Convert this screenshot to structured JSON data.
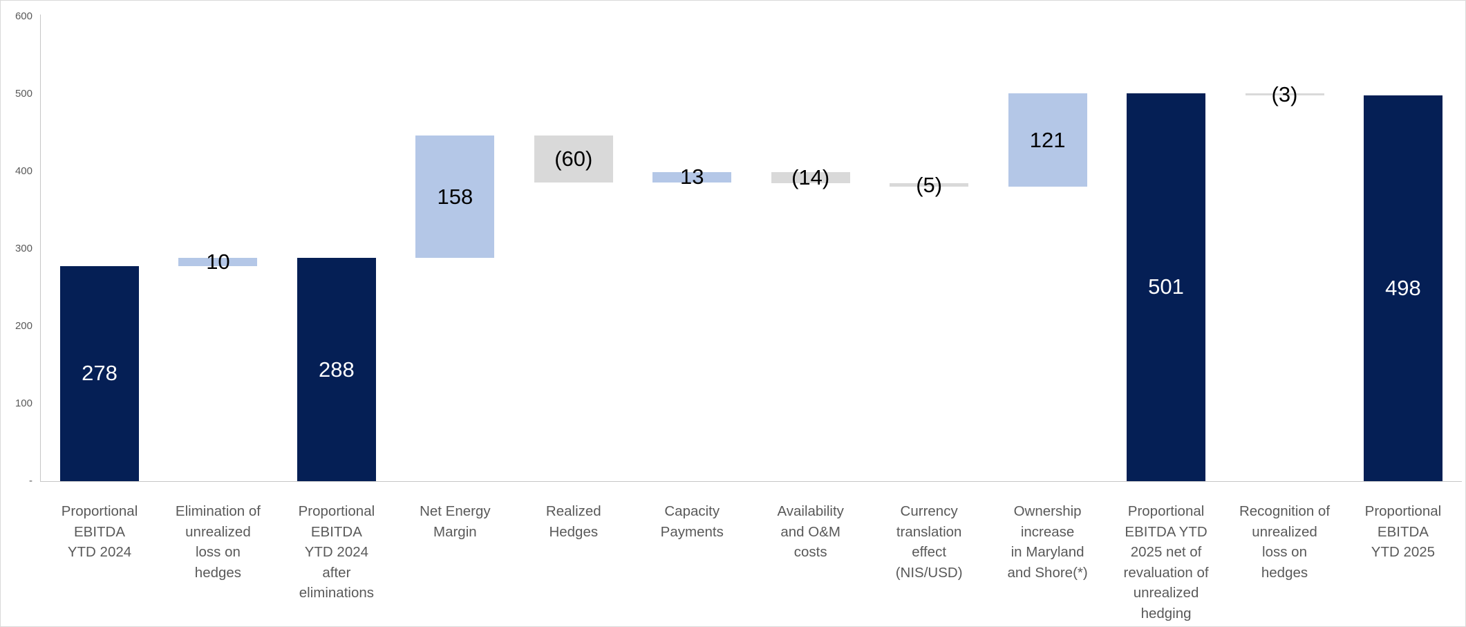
{
  "chart_data": {
    "type": "waterfall",
    "title": "",
    "legend": "none",
    "grid": "off",
    "y_axis": {
      "min": 0,
      "max": 600,
      "tick_step": 100,
      "tick_values": [
        600,
        500,
        400,
        300,
        200,
        100,
        0
      ],
      "tick_labels": [
        "600",
        "500",
        "400",
        "300",
        "200",
        "100",
        "-"
      ]
    },
    "colors": {
      "total": "#051f55",
      "increase": "#b4c7e7",
      "decrease": "#d9d9d9",
      "label_on_total": "#ffffff",
      "label_on_delta": "#000000",
      "axis_text": "#595959",
      "category_text": "#595959",
      "axis_line": "#c6c6c6"
    },
    "bars": [
      {
        "category": "Proportional\nEBITDA\nYTD 2024",
        "label": "278",
        "value": 278,
        "start": 0,
        "end": 278,
        "role": "total"
      },
      {
        "category": "Elimination of\nunrealized\nloss on\nhedges",
        "label": "10",
        "value": 10,
        "start": 278,
        "end": 288,
        "role": "increase"
      },
      {
        "category": "Proportional\nEBITDA\nYTD 2024\nafter\neliminations",
        "label": "288",
        "value": 288,
        "start": 0,
        "end": 288,
        "role": "total"
      },
      {
        "category": "Net Energy\nMargin",
        "label": "158",
        "value": 158,
        "start": 288,
        "end": 446,
        "role": "increase"
      },
      {
        "category": "Realized\nHedges",
        "label": "(60)",
        "value": -60,
        "start": 446,
        "end": 386,
        "role": "decrease"
      },
      {
        "category": "Capacity\nPayments",
        "label": "13",
        "value": 13,
        "start": 386,
        "end": 399,
        "role": "increase"
      },
      {
        "category": "Availability\nand O&M\ncosts",
        "label": "(14)",
        "value": -14,
        "start": 399,
        "end": 385,
        "role": "decrease"
      },
      {
        "category": "Currency\ntranslation\neffect\n(NIS/USD)",
        "label": "(5)",
        "value": -5,
        "start": 385,
        "end": 380,
        "role": "decrease"
      },
      {
        "category": "Ownership\nincrease\nin Maryland\nand Shore(*)",
        "label": "121",
        "value": 121,
        "start": 380,
        "end": 501,
        "role": "increase"
      },
      {
        "category": "Proportional\nEBITDA YTD\n2025 net of\nrevaluation of\nunrealized\nhedging",
        "label": "501",
        "value": 501,
        "start": 0,
        "end": 501,
        "role": "total"
      },
      {
        "category": "Recognition of\nunrealized\nloss on\nhedges",
        "label": "(3)",
        "value": -3,
        "start": 501,
        "end": 498,
        "role": "decrease"
      },
      {
        "category": "Proportional\nEBITDA\nYTD 2025",
        "label": "498",
        "value": 498,
        "start": 0,
        "end": 498,
        "role": "total"
      }
    ]
  }
}
